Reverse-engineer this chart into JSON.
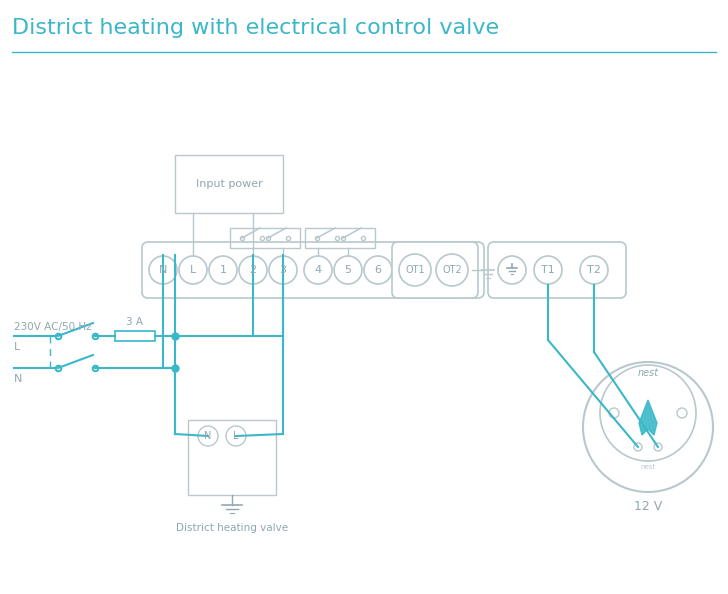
{
  "title": "District heating with electrical control valve",
  "title_color": "#3ab8c8",
  "title_fontsize": 16,
  "bg_color": "#ffffff",
  "wire_color": "#3ab8c8",
  "gray": "#8fa8b0",
  "light_gray": "#b8c8cc",
  "label_230": "230V AC/50 Hz",
  "label_L": "L",
  "label_N": "N",
  "label_3A": "3 A",
  "label_valve": "District heating valve",
  "label_12V": "12 V",
  "label_input": "Input power",
  "terminal_labels": [
    "N",
    "L",
    "1",
    "2",
    "3",
    "4",
    "5",
    "6"
  ],
  "ot_labels": [
    "OT1",
    "OT2"
  ],
  "t_labels": [
    "T1",
    "T2"
  ]
}
